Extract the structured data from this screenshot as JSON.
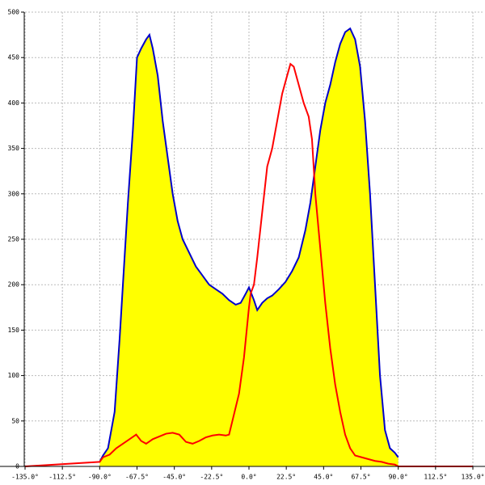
{
  "chart_data": {
    "type": "area",
    "xlim": [
      -135,
      135
    ],
    "xticks": [
      {
        "value": -135,
        "label": "-135.0°"
      },
      {
        "value": -112.5,
        "label": "-112.5°"
      },
      {
        "value": -90,
        "label": "-90.0°"
      },
      {
        "value": -67.5,
        "label": "-67.5°"
      },
      {
        "value": -45,
        "label": "-45.0°"
      },
      {
        "value": -22.5,
        "label": "-22.5°"
      },
      {
        "value": 0,
        "label": "0.0°"
      },
      {
        "value": 22.5,
        "label": "22.5°"
      },
      {
        "value": 45,
        "label": "45.0°"
      },
      {
        "value": 67.5,
        "label": "67.5°"
      },
      {
        "value": 90,
        "label": "90.0°"
      },
      {
        "value": 112.5,
        "label": "112.5°"
      },
      {
        "value": 135,
        "label": "135.0°"
      }
    ],
    "ylim": [
      0,
      500
    ],
    "yticks": [
      0,
      50,
      100,
      150,
      200,
      250,
      300,
      350,
      400,
      450,
      500
    ],
    "grid": true,
    "series": [
      {
        "color": "#0000cc",
        "fill": "#ffff00",
        "x": [
          -90,
          -88,
          -85,
          -81,
          -78,
          -76,
          -73,
          -70,
          -67.5,
          -65,
          -62,
          -60,
          -58,
          -55,
          -52,
          -49,
          -46,
          -43,
          -40,
          -36,
          -32,
          -28,
          -24,
          -20,
          -16,
          -12,
          -8,
          -5,
          -2,
          0,
          3,
          5,
          8,
          11,
          14,
          18,
          22,
          26,
          30,
          34,
          37,
          40,
          43,
          46,
          49,
          52,
          55,
          58,
          61,
          64,
          67,
          70,
          73,
          76,
          79,
          82,
          85,
          88,
          90
        ],
        "values": [
          5,
          12,
          20,
          60,
          140,
          200,
          290,
          370,
          450,
          460,
          470,
          475,
          460,
          430,
          380,
          340,
          300,
          270,
          250,
          235,
          220,
          210,
          200,
          195,
          190,
          183,
          178,
          180,
          190,
          197,
          183,
          172,
          180,
          185,
          188,
          195,
          203,
          215,
          230,
          260,
          290,
          330,
          370,
          400,
          420,
          445,
          465,
          478,
          482,
          470,
          440,
          380,
          300,
          200,
          100,
          40,
          20,
          15,
          10
        ]
      },
      {
        "color": "#ff0000",
        "x": [
          -135,
          -90,
          -88,
          -84,
          -80,
          -76,
          -72,
          -68,
          -65,
          -62,
          -58,
          -54,
          -50,
          -46,
          -42,
          -38,
          -34,
          -30,
          -26,
          -22,
          -18,
          -14,
          -12,
          -10,
          -6,
          -3,
          0,
          1,
          3,
          5,
          8,
          11,
          14,
          17,
          20,
          23,
          25,
          27,
          30,
          33,
          36,
          38,
          40,
          43,
          46,
          49,
          52,
          55,
          58,
          61,
          64,
          68,
          72,
          76,
          80,
          84,
          88,
          90,
          135
        ],
        "values": [
          0,
          5,
          10,
          13,
          20,
          25,
          30,
          35,
          28,
          25,
          30,
          33,
          36,
          37,
          35,
          27,
          25,
          28,
          32,
          34,
          35,
          34,
          35,
          50,
          80,
          120,
          175,
          190,
          200,
          230,
          280,
          330,
          350,
          380,
          410,
          430,
          443,
          440,
          420,
          400,
          385,
          360,
          300,
          240,
          180,
          130,
          90,
          60,
          35,
          20,
          12,
          10,
          8,
          6,
          5,
          3,
          2,
          0,
          0
        ]
      }
    ]
  }
}
